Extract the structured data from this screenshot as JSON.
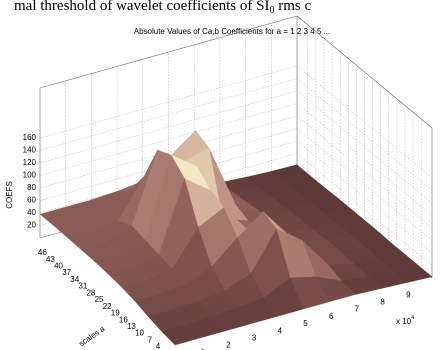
{
  "caption": {
    "text": "mal threshold of wavelet coefficients of SI",
    "sub": "0",
    "tail": " rms c"
  },
  "chart_data": {
    "type": "surface",
    "title": "Absolute Values of Ca,b Coefficients for a =  1 2 3 4 5 ...",
    "zlabel": "COEFS",
    "ylabel": "scales a",
    "x_multiplier": "x 10",
    "x_exponent": "4",
    "x": [
      0,
      1,
      2,
      3,
      4,
      5,
      6,
      7,
      8,
      9,
      10
    ],
    "y": [
      0,
      5,
      10,
      15,
      20,
      25,
      30,
      35,
      40,
      45,
      50
    ],
    "z": [
      [
        8,
        8,
        8,
        8,
        8,
        8,
        8,
        8,
        6,
        4,
        2
      ],
      [
        12,
        12,
        14,
        16,
        20,
        40,
        30,
        12,
        8,
        5,
        2
      ],
      [
        18,
        18,
        20,
        25,
        40,
        100,
        70,
        20,
        10,
        5,
        2
      ],
      [
        25,
        25,
        28,
        45,
        80,
        110,
        60,
        22,
        12,
        6,
        2
      ],
      [
        30,
        30,
        35,
        90,
        110,
        60,
        40,
        20,
        12,
        6,
        3
      ],
      [
        33,
        33,
        40,
        150,
        120,
        50,
        35,
        18,
        10,
        6,
        3
      ],
      [
        35,
        35,
        45,
        170,
        140,
        45,
        30,
        16,
        10,
        5,
        3
      ],
      [
        36,
        36,
        50,
        160,
        130,
        140,
        40,
        15,
        8,
        5,
        3
      ],
      [
        37,
        37,
        40,
        100,
        120,
        150,
        40,
        12,
        7,
        4,
        2
      ],
      [
        38,
        38,
        40,
        60,
        80,
        100,
        30,
        10,
        6,
        4,
        2
      ],
      [
        38,
        38,
        38,
        40,
        45,
        50,
        20,
        8,
        5,
        3,
        2
      ]
    ],
    "xlim": [
      0,
      10
    ],
    "xticks": [
      1,
      2,
      3,
      4,
      5,
      6,
      7,
      8,
      9
    ],
    "ylim": [
      0,
      50
    ],
    "yticks": [
      4,
      7,
      10,
      13,
      16,
      19,
      22,
      25,
      28,
      31,
      34,
      37,
      40,
      43,
      46
    ],
    "zlim": [
      0,
      240
    ],
    "zticks": [
      20,
      40,
      60,
      80,
      100,
      120,
      140,
      160
    ],
    "grid": true,
    "colormap": [
      "#2e1616",
      "#8a5a55",
      "#c89a8a",
      "#f8f4cc"
    ]
  }
}
